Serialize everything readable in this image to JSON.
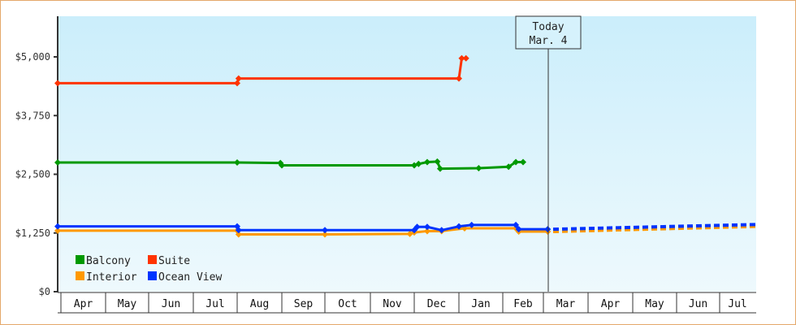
{
  "chart_data": {
    "type": "line",
    "title": "",
    "xlabel": "",
    "ylabel": "",
    "ylim": [
      0,
      6000
    ],
    "y_ticks": [
      "$0",
      "$1,250",
      "$2,500",
      "$3,750",
      "$5,000"
    ],
    "categories": [
      "Apr",
      "May",
      "Jun",
      "Jul",
      "Aug",
      "Sep",
      "Oct",
      "Nov",
      "Dec",
      "Jan",
      "Feb",
      "Mar",
      "Apr",
      "May",
      "Jun",
      "Jul"
    ],
    "today_marker": {
      "line1": "Today",
      "line2": "Mar. 4"
    },
    "legend": [
      "Balcony",
      "Suite",
      "Interior",
      "Ocean View"
    ],
    "series": [
      {
        "name": "Balcony",
        "color": "#009900",
        "points": [
          {
            "date": "Apr 1",
            "value": 2750
          },
          {
            "date": "Aug 1",
            "value": 2750
          },
          {
            "date": "Aug 31",
            "value": 2740
          },
          {
            "date": "Sep 1",
            "value": 2690
          },
          {
            "date": "Dec 1",
            "value": 2690
          },
          {
            "date": "Dec 4",
            "value": 2720
          },
          {
            "date": "Dec 10",
            "value": 2760
          },
          {
            "date": "Dec 17",
            "value": 2770
          },
          {
            "date": "Dec 19",
            "value": 2620
          },
          {
            "date": "Jan 15",
            "value": 2630
          },
          {
            "date": "Feb 5",
            "value": 2660
          },
          {
            "date": "Feb 10",
            "value": 2760
          },
          {
            "date": "Feb 15",
            "value": 2760
          }
        ]
      },
      {
        "name": "Suite",
        "color": "#ff3300",
        "points": [
          {
            "date": "Apr 1",
            "value": 4440
          },
          {
            "date": "Aug 1",
            "value": 4440
          },
          {
            "date": "Aug 2",
            "value": 4540
          },
          {
            "date": "Jan 1",
            "value": 4540
          },
          {
            "date": "Jan 3",
            "value": 4970
          },
          {
            "date": "Jan 6",
            "value": 4970
          }
        ]
      },
      {
        "name": "Interior",
        "color": "#ff9900",
        "points": [
          {
            "date": "Apr 1",
            "value": 1300
          },
          {
            "date": "Aug 1",
            "value": 1300
          },
          {
            "date": "Aug 2",
            "value": 1220
          },
          {
            "date": "Oct 1",
            "value": 1220
          },
          {
            "date": "Nov 28",
            "value": 1230
          },
          {
            "date": "Dec 1",
            "value": 1260
          },
          {
            "date": "Dec 10",
            "value": 1290
          },
          {
            "date": "Dec 20",
            "value": 1290
          },
          {
            "date": "Jan 5",
            "value": 1350
          },
          {
            "date": "Feb 10",
            "value": 1350
          },
          {
            "date": "Feb 12",
            "value": 1280
          },
          {
            "date": "Mar 4",
            "value": 1280
          },
          {
            "date": "Jul 31",
            "value": 1390,
            "projected": true
          }
        ]
      },
      {
        "name": "Ocean View",
        "color": "#0033ff",
        "points": [
          {
            "date": "Apr 1",
            "value": 1390
          },
          {
            "date": "Aug 1",
            "value": 1390
          },
          {
            "date": "Aug 2",
            "value": 1310
          },
          {
            "date": "Oct 1",
            "value": 1310
          },
          {
            "date": "Dec 1",
            "value": 1310
          },
          {
            "date": "Dec 3",
            "value": 1380
          },
          {
            "date": "Dec 10",
            "value": 1380
          },
          {
            "date": "Dec 20",
            "value": 1310
          },
          {
            "date": "Jan 1",
            "value": 1390
          },
          {
            "date": "Jan 10",
            "value": 1420
          },
          {
            "date": "Feb 10",
            "value": 1420
          },
          {
            "date": "Feb 12",
            "value": 1330
          },
          {
            "date": "Mar 4",
            "value": 1330
          },
          {
            "date": "Jul 31",
            "value": 1430,
            "projected": true
          }
        ]
      }
    ],
    "grid": false,
    "legend_position": "lower-left inside plot"
  }
}
